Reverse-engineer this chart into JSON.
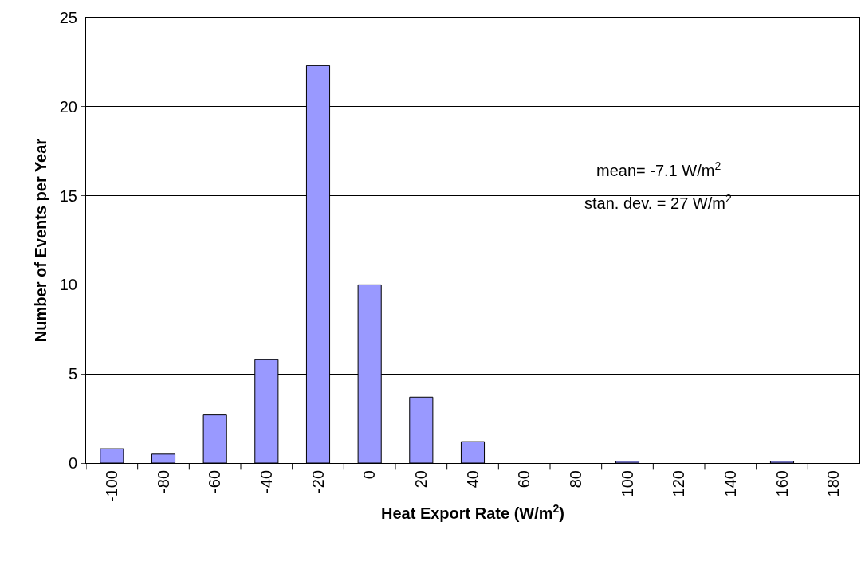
{
  "chart_data": {
    "type": "bar",
    "xlabel": "Heat Export Rate (W/m$^{2}$)",
    "ylabel": "Number of Events per Year",
    "categories": [
      "-100",
      "-80",
      "-60",
      "-40",
      "-20",
      "0",
      "20",
      "40",
      "60",
      "80",
      "100",
      "120",
      "140",
      "160",
      "180"
    ],
    "values": [
      0.8,
      0.5,
      2.7,
      5.8,
      22.3,
      10,
      3.7,
      1.2,
      0,
      0,
      0.1,
      0,
      0,
      0.1,
      0
    ],
    "color": "#9999ff",
    "ylim": [
      0,
      25
    ],
    "yticks": [
      0,
      5,
      10,
      15,
      20,
      25
    ],
    "grid": "y",
    "annotations": [
      "mean= -7.1 W/m$^{2}$",
      "stan. dev. = 27 W/m$^{2}$"
    ]
  }
}
